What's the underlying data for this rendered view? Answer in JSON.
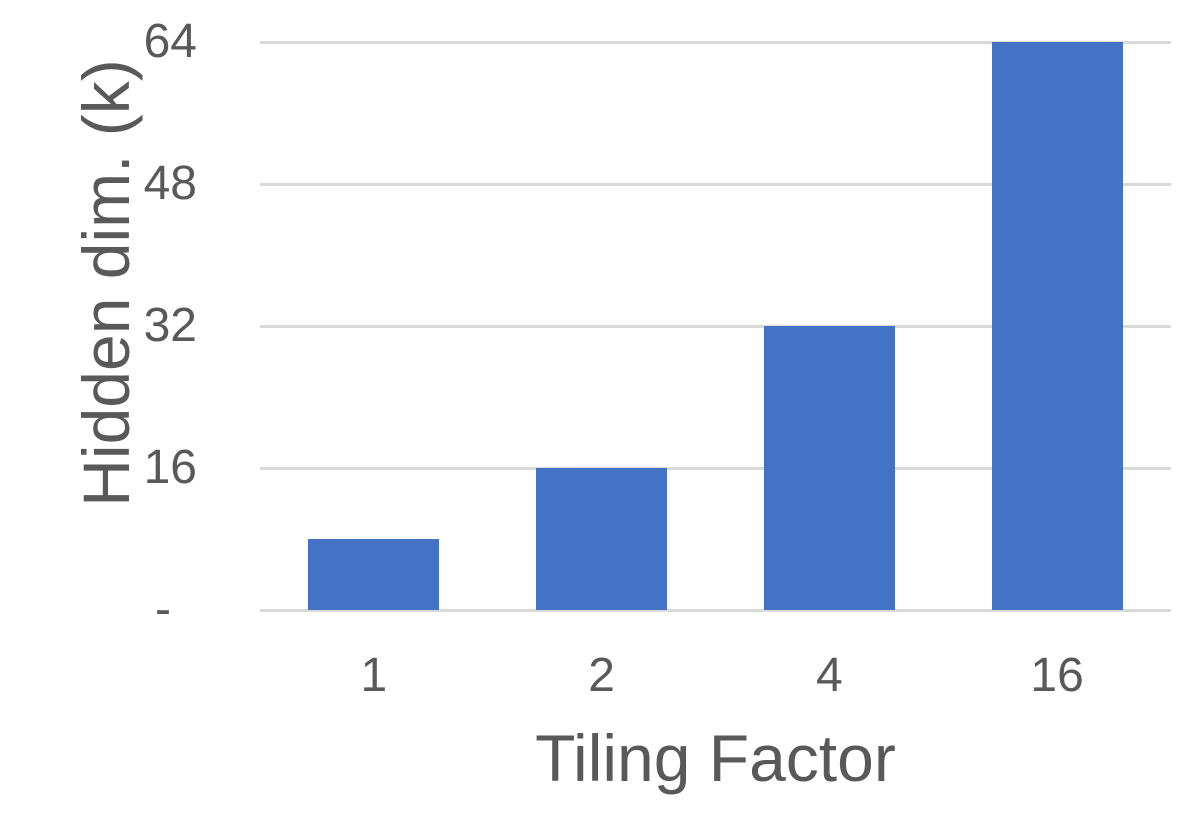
{
  "chart_data": {
    "type": "bar",
    "title": "",
    "categories": [
      "1",
      "2",
      "4",
      "16"
    ],
    "values": [
      8,
      16,
      32,
      64
    ],
    "series": [
      {
        "name": "Hidden dim. (k)",
        "values": [
          8,
          16,
          32,
          64
        ]
      }
    ],
    "xlabel": "Tiling Factor",
    "ylabel": "Hidden dim. (k)",
    "ylim": [
      0,
      64
    ],
    "yticks": [
      {
        "value": 0,
        "label": "-"
      },
      {
        "value": 16,
        "label": "16"
      },
      {
        "value": 32,
        "label": "32"
      },
      {
        "value": 48,
        "label": "48"
      },
      {
        "value": 64,
        "label": "64"
      }
    ],
    "grid": true,
    "legend_position": "none",
    "bar_color": "#4472C4",
    "text_color": "#595959",
    "gridline_color": "#D9D9D9",
    "background_color": "#FFFFFF"
  }
}
